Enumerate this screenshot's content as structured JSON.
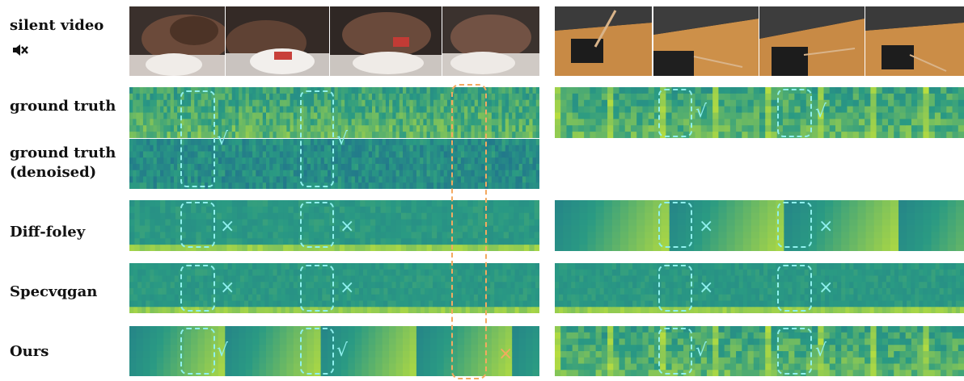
{
  "rows": {
    "silent_video": "silent video",
    "ground_truth": "ground truth",
    "ground_truth_denoised_1": "ground truth",
    "ground_truth_denoised_2": "(denoised)",
    "diff_foley": "Diff-foley",
    "specvqgan": "Specvqgan",
    "ours": "Ours"
  },
  "icons": {
    "silent_video": "muted-speaker-icon"
  },
  "marks": {
    "check": "√",
    "cross": "×",
    "colors": {
      "highlight": "#8ff0ee",
      "failure": "#f4a960"
    }
  },
  "colors": {
    "spec_low": "#1f6b8e",
    "spec_mid": "#2a9a83",
    "spec_high": "#b7dd3f"
  }
}
